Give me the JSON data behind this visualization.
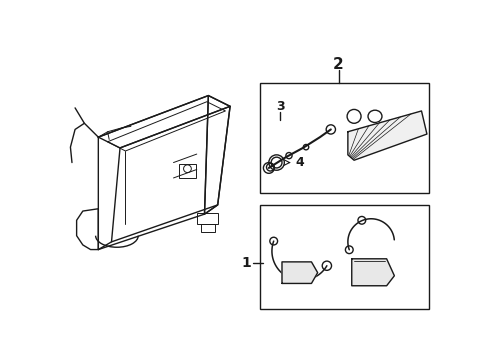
{
  "bg_color": "#ffffff",
  "line_color": "#1a1a1a",
  "fig_width": 4.89,
  "fig_height": 3.6,
  "dpi": 100,
  "label_2": "2",
  "label_3": "3",
  "label_4": "4",
  "label_1": "1"
}
